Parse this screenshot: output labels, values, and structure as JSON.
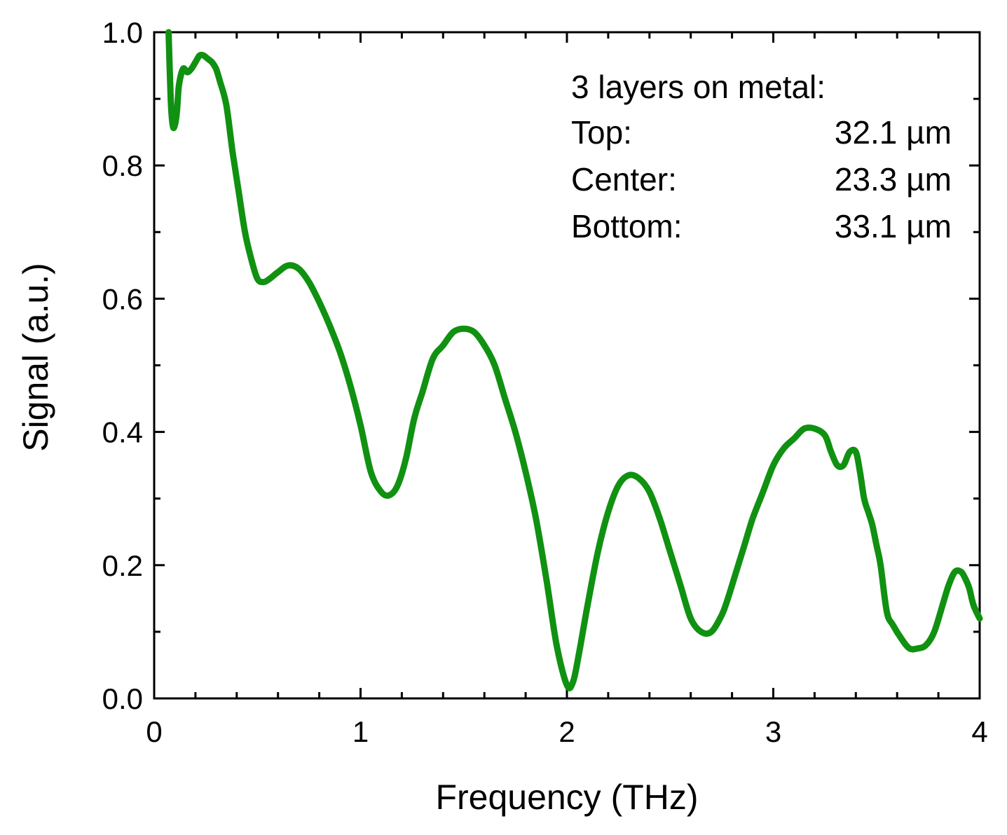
{
  "chart_data": {
    "type": "line",
    "xlabel": "Frequency (THz)",
    "ylabel": "Signal (a.u.)",
    "xlim": [
      0,
      4
    ],
    "ylim": [
      0,
      1.0
    ],
    "x_ticks": [
      0,
      1,
      2,
      3,
      4
    ],
    "x_tick_labels": [
      "0",
      "1",
      "2",
      "3",
      "4"
    ],
    "y_ticks": [
      0,
      0.2,
      0.4,
      0.6,
      0.8,
      1.0
    ],
    "y_tick_labels": [
      "0.0",
      "0.2",
      "0.4",
      "0.6",
      "0.8",
      "1.0"
    ],
    "grid": false,
    "line_color": "#119111",
    "annotation": {
      "title": "3 layers on metal:",
      "rows": [
        {
          "label": "Top:",
          "value": "32.1 µm"
        },
        {
          "label": "Center:",
          "value": "23.3 µm"
        },
        {
          "label": "Bottom:",
          "value": "33.1 µm"
        }
      ]
    },
    "series": [
      {
        "x": [
          0.07,
          0.08,
          0.09,
          0.1,
          0.11,
          0.12,
          0.14,
          0.16,
          0.18,
          0.2,
          0.22,
          0.24,
          0.26,
          0.28,
          0.3,
          0.32,
          0.35,
          0.38,
          0.41,
          0.44,
          0.47,
          0.5,
          0.53,
          0.56,
          0.6,
          0.65,
          0.7,
          0.75,
          0.8,
          0.85,
          0.9,
          0.95,
          1.0,
          1.05,
          1.1,
          1.14,
          1.18,
          1.22,
          1.26,
          1.3,
          1.35,
          1.4,
          1.45,
          1.5,
          1.55,
          1.6,
          1.65,
          1.7,
          1.75,
          1.8,
          1.85,
          1.9,
          1.95,
          2.0,
          2.03,
          2.06,
          2.1,
          2.15,
          2.2,
          2.25,
          2.3,
          2.35,
          2.4,
          2.45,
          2.5,
          2.55,
          2.6,
          2.65,
          2.7,
          2.75,
          2.78,
          2.82,
          2.86,
          2.9,
          2.95,
          3.0,
          3.05,
          3.1,
          3.15,
          3.2,
          3.25,
          3.28,
          3.31,
          3.34,
          3.37,
          3.4,
          3.42,
          3.44,
          3.46,
          3.48,
          3.5,
          3.52,
          3.55,
          3.58,
          3.62,
          3.66,
          3.7,
          3.74,
          3.78,
          3.82,
          3.85,
          3.88,
          3.91,
          3.93,
          3.95,
          3.97,
          4.0
        ],
        "y": [
          1.0,
          0.9,
          0.86,
          0.86,
          0.88,
          0.92,
          0.945,
          0.94,
          0.945,
          0.955,
          0.965,
          0.965,
          0.96,
          0.955,
          0.945,
          0.925,
          0.89,
          0.82,
          0.76,
          0.7,
          0.66,
          0.63,
          0.625,
          0.63,
          0.64,
          0.65,
          0.645,
          0.625,
          0.595,
          0.56,
          0.52,
          0.47,
          0.41,
          0.34,
          0.31,
          0.305,
          0.32,
          0.36,
          0.42,
          0.46,
          0.51,
          0.53,
          0.55,
          0.555,
          0.55,
          0.53,
          0.5,
          0.45,
          0.4,
          0.34,
          0.27,
          0.18,
          0.08,
          0.02,
          0.025,
          0.07,
          0.14,
          0.22,
          0.28,
          0.32,
          0.335,
          0.33,
          0.31,
          0.27,
          0.22,
          0.17,
          0.12,
          0.1,
          0.1,
          0.125,
          0.15,
          0.19,
          0.23,
          0.27,
          0.31,
          0.35,
          0.375,
          0.39,
          0.405,
          0.405,
          0.395,
          0.37,
          0.35,
          0.35,
          0.37,
          0.37,
          0.34,
          0.3,
          0.28,
          0.26,
          0.23,
          0.2,
          0.13,
          0.11,
          0.09,
          0.075,
          0.075,
          0.08,
          0.1,
          0.14,
          0.17,
          0.19,
          0.19,
          0.18,
          0.165,
          0.14,
          0.12
        ]
      }
    ]
  }
}
